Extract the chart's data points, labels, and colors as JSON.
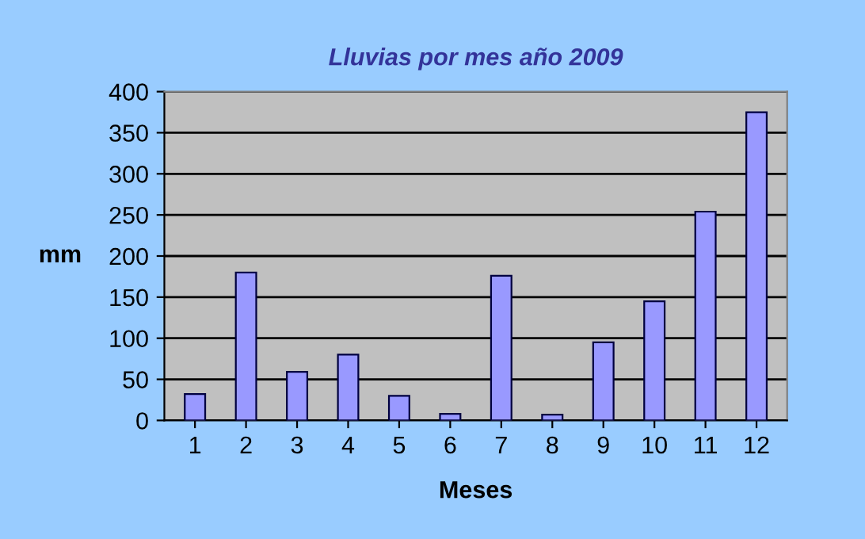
{
  "chart_data": {
    "type": "bar",
    "title": "Lluvias por mes año 2009",
    "xlabel": "Meses",
    "ylabel": "mm",
    "categories": [
      "1",
      "2",
      "3",
      "4",
      "5",
      "6",
      "7",
      "8",
      "9",
      "10",
      "11",
      "12"
    ],
    "values": [
      32,
      180,
      59,
      80,
      30,
      8,
      176,
      7,
      95,
      145,
      254,
      375
    ],
    "color": "#9999ff",
    "ylim": [
      0,
      400
    ],
    "yticks": [
      0,
      50,
      100,
      150,
      200,
      250,
      300,
      350,
      400
    ],
    "grid": "y",
    "legend": false
  }
}
